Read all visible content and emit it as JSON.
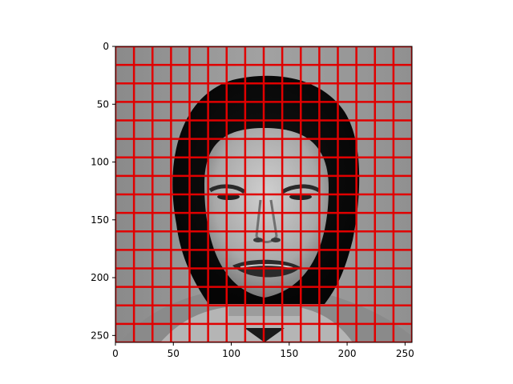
{
  "chart_data": {
    "type": "heatmap",
    "title": "",
    "xlabel": "",
    "ylabel": "",
    "xlim": [
      0,
      256
    ],
    "ylim": [
      256,
      0
    ],
    "x_ticks": [
      0,
      50,
      100,
      150,
      200,
      250
    ],
    "y_ticks": [
      0,
      50,
      100,
      150,
      200,
      250
    ],
    "x_tick_labels": [
      "0",
      "50",
      "100",
      "150",
      "200",
      "250"
    ],
    "y_tick_labels": [
      "0",
      "50",
      "100",
      "150",
      "200",
      "250"
    ],
    "image": {
      "content": "grayscale photograph of a face",
      "width": 256,
      "height": 256
    },
    "grid_overlay": {
      "color": "#e00000",
      "spacing": 16,
      "lines_x": [
        0,
        16,
        32,
        48,
        64,
        80,
        96,
        112,
        128,
        144,
        160,
        176,
        192,
        208,
        224,
        240,
        256
      ],
      "lines_y": [
        0,
        16,
        32,
        48,
        64,
        80,
        96,
        112,
        128,
        144,
        160,
        176,
        192,
        208,
        224,
        240,
        256
      ]
    },
    "grid": true,
    "legend": "none"
  }
}
